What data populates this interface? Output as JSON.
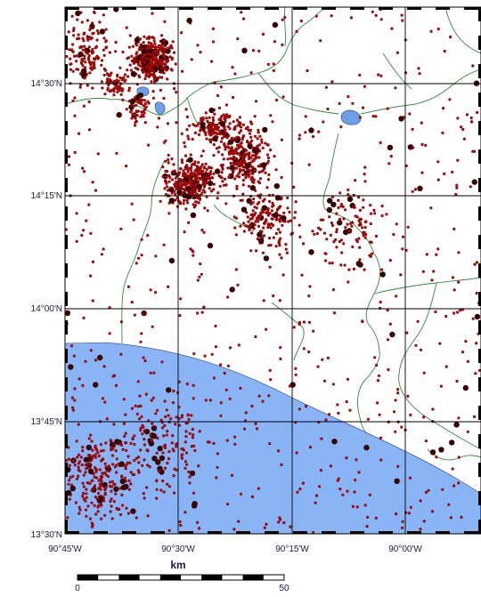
{
  "map": {
    "lat_labels": [
      "14°30'N",
      "14°15'N",
      "14°00'N",
      "13°45'N",
      "13°30'N"
    ],
    "lon_labels": [
      "90°45'W",
      "90°30'W",
      "90°15'W",
      "90°00'W"
    ],
    "scale": {
      "unit_label": "km",
      "start_label": "0",
      "end_label": "50"
    },
    "colors": {
      "ocean": "#89b4f5",
      "lake": "#6f9ee8",
      "border": "#2e8b3a",
      "grid": "#000000",
      "event_fill": "#8a0000",
      "event_dark": "#3a0000",
      "event_cross": "#ff2020",
      "label": "#1d1a3e"
    }
  }
}
